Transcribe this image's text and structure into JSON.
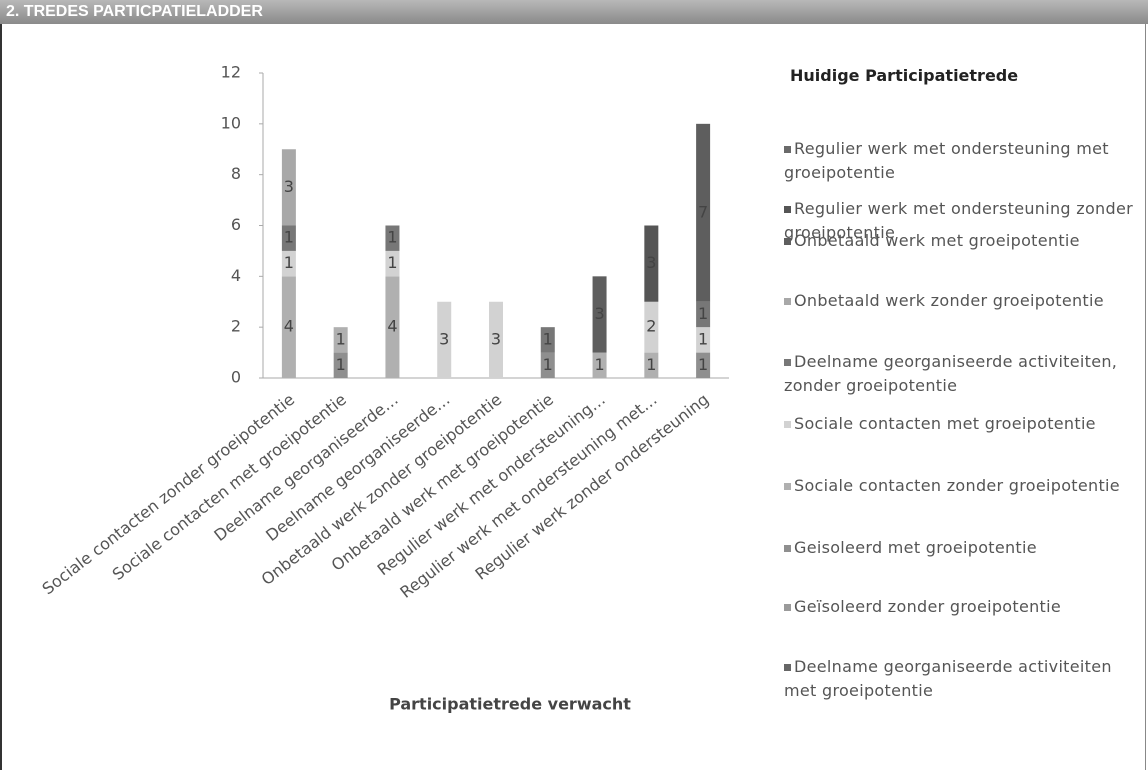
{
  "header": {
    "title": "2. TREDES PARTICPATIELADDER"
  },
  "chart_data": {
    "type": "stacked_bar",
    "x_label": "Participatietrede verwacht",
    "legend_title": "Huidige Participatietrede",
    "categories": [
      "Sociale contacten zonder groeipotentie",
      "Sociale contacten met groeipotentie",
      "Deelname georganiseerde…",
      "Deelname georganiseerde…",
      "Onbetaald werk zonder groeipotentie",
      "Onbetaald werk met groeipotentie",
      "Regulier werk met ondersteuning…",
      "Regulier werk met ondersteuning met…",
      "Regulier werk zonder ondersteuning"
    ],
    "ylim": [
      0,
      12
    ],
    "yticks": [
      0,
      2,
      4,
      6,
      8,
      10,
      12
    ],
    "grid": false,
    "legend": "right",
    "series": [
      {
        "name": "Regulier werk met ondersteuning met groeipotentie",
        "color": "#6a6a6a",
        "values": [
          null,
          null,
          null,
          null,
          null,
          null,
          null,
          null,
          null
        ]
      },
      {
        "name": "Regulier werk met ondersteuning zonder groeipotentie",
        "color": "#555555",
        "values": [
          null,
          null,
          null,
          null,
          null,
          null,
          null,
          3,
          null
        ]
      },
      {
        "name": "Onbetaald werk met groeipotentie",
        "color": "#5e5e5e",
        "values": [
          null,
          null,
          null,
          null,
          null,
          null,
          3,
          null,
          7
        ]
      },
      {
        "name": "Onbetaald werk zonder groeipotentie",
        "color": "#a8a8a8",
        "values": [
          3,
          null,
          null,
          null,
          null,
          null,
          null,
          null,
          null
        ]
      },
      {
        "name": "Deelname georganiseerde activiteiten, zonder groeipotentie",
        "color": "#777777",
        "values": [
          1,
          null,
          1,
          null,
          null,
          1,
          null,
          null,
          1
        ]
      },
      {
        "name": "Sociale contacten met groeipotentie",
        "color": "#d2d2d2",
        "values": [
          1,
          null,
          1,
          3,
          3,
          null,
          null,
          2,
          1
        ]
      },
      {
        "name": "Sociale contacten zonder groeipotentie",
        "color": "#b0b0b0",
        "values": [
          4,
          1,
          4,
          null,
          null,
          null,
          1,
          1,
          null
        ]
      },
      {
        "name": "Geisoleerd met groeipotentie",
        "color": "#8f8f8f",
        "values": [
          null,
          1,
          null,
          null,
          null,
          1,
          null,
          null,
          1
        ]
      },
      {
        "name": "Geïsoleerd zonder groeipotentie",
        "color": "#9a9a9a",
        "values": [
          null,
          null,
          null,
          null,
          null,
          null,
          null,
          null,
          null
        ]
      },
      {
        "name": "Deelname georganiseerde activiteiten met groeipotentie",
        "color": "#666666",
        "values": [
          null,
          null,
          null,
          null,
          null,
          null,
          null,
          null,
          null
        ]
      }
    ]
  }
}
